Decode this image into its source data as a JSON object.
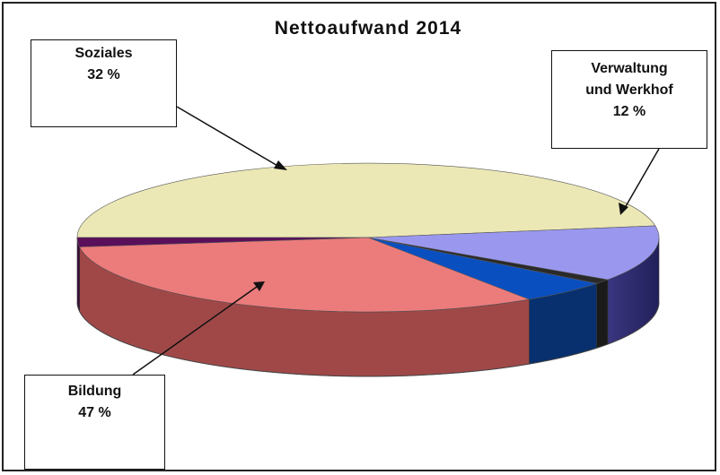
{
  "chart_data": {
    "type": "pie",
    "title": "Nettoaufwand 2014",
    "slices": [
      {
        "label": "Bildung",
        "value_text": "47 %",
        "value": 47,
        "color": "#ECE8B6"
      },
      {
        "label": "Verwaltung und Werkhof",
        "value_text": "12 %",
        "value": 12,
        "color": "#9A98EE"
      },
      {
        "label": "",
        "value": 1,
        "color": "#2A2A2A"
      },
      {
        "label": "",
        "value": 5,
        "color": "#0A4FC0"
      },
      {
        "label": "Soziales",
        "value_text": "32 %",
        "value": 32,
        "color": "#EC7B7C"
      },
      {
        "label": "",
        "value": 2,
        "color": "#5A0F5A"
      }
    ]
  },
  "callouts": {
    "soziales": {
      "name": "Soziales",
      "pct": "32 %"
    },
    "verwaltung": {
      "line1": "Verwaltung",
      "line2": "und Werkhof",
      "pct": "12 %"
    },
    "bildung": {
      "name": "Bildung",
      "pct": "47 %"
    }
  },
  "colors": {
    "frame": "#222222",
    "background": "#FFFFFF"
  }
}
